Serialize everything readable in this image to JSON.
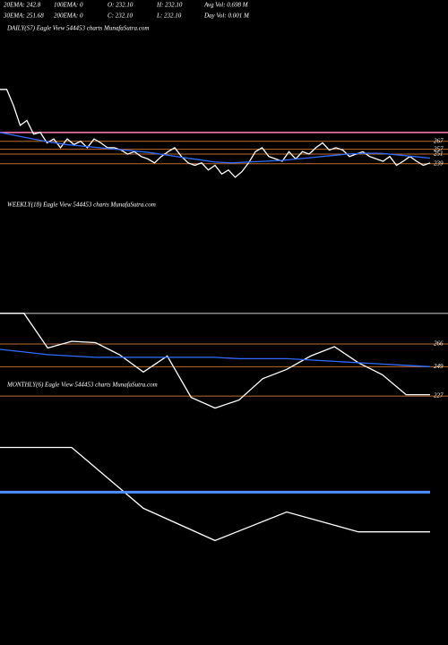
{
  "header": {
    "row1": [
      "20EMA: 242.8",
      "100EMA: 0",
      "O: 232.10",
      "H: 232.10",
      "Avg Vol: 0.698  M"
    ],
    "row2": [
      "30EMA: 251.68",
      "200EMA: 0",
      "C: 232.10",
      "L: 232.10",
      "Day Vol: 0.001  M"
    ]
  },
  "chart_data": [
    {
      "type": "line",
      "title": "DAILY(S7) Eagle   View  544453 charts MunafaSutra.com",
      "ylim": [
        214,
        399
      ],
      "series": [
        {
          "color": "#ffffff",
          "values": [
            332,
            332,
            312,
            287,
            293,
            276,
            278,
            265,
            270,
            259,
            270,
            263,
            267,
            259,
            270,
            265,
            259,
            259,
            256,
            251,
            254,
            248,
            245,
            240,
            248,
            254,
            259,
            248,
            240,
            237,
            240,
            231,
            237,
            226,
            231,
            222,
            229,
            240,
            254,
            259,
            248,
            245,
            242,
            254,
            245,
            254,
            251,
            259,
            265,
            256,
            259,
            256,
            248,
            251,
            254,
            248,
            245,
            242,
            248,
            237,
            242,
            248,
            242,
            237,
            240
          ]
        },
        {
          "color": "#2f6bff",
          "values": [
            278,
            274,
            270,
            266,
            263,
            261,
            259,
            257,
            255,
            253,
            250,
            247,
            244,
            241,
            240,
            241,
            242,
            243,
            245,
            247,
            249,
            251,
            252,
            252,
            250,
            248,
            246
          ]
        }
      ],
      "levels": [
        {
          "value": 278,
          "color": "#ff7fb0"
        },
        {
          "value": 267,
          "label": "267",
          "color": "#c06a2a"
        },
        {
          "value": 257,
          "label": "257",
          "color": "#c06a2a"
        },
        {
          "value": 251,
          "label": "251",
          "color": "#c06a2a"
        },
        {
          "value": 239,
          "label": "239",
          "color": "#c06a2a"
        }
      ]
    },
    {
      "type": "line",
      "title": "WEEKLY(18) Eagle   View  544453 charts MunafaSutra.com",
      "ylim": [
        215,
        366
      ],
      "series": [
        {
          "color": "#ffffff",
          "values": [
            289,
            289,
            263,
            268,
            267,
            258,
            245,
            257,
            226,
            218,
            224,
            240,
            247,
            257,
            264,
            252,
            243,
            228,
            228
          ]
        },
        {
          "color": "#2f6bff",
          "values": [
            262,
            260,
            258,
            257,
            256,
            256,
            256,
            256,
            256,
            256,
            255,
            255,
            255,
            254,
            253,
            252,
            251,
            250,
            249
          ]
        }
      ],
      "levels": [
        {
          "value": 289,
          "color": "#888888"
        },
        {
          "value": 266,
          "label": "266",
          "color": "#c06a2a"
        },
        {
          "value": 249,
          "label": "249",
          "color": "#c06a2a"
        },
        {
          "value": 227,
          "label": "227",
          "color": "#c06a2a"
        }
      ]
    },
    {
      "type": "line",
      "title": "MONTHLY(6) Eagle   View  544453 charts MunafaSutra.com",
      "ylim": [
        200,
        330
      ],
      "series": [
        {
          "color": "#ffffff",
          "values": [
            287,
            287,
            238,
            212,
            235,
            219,
            219
          ]
        },
        {
          "color": "#4f8fff",
          "values": [
            251,
            251
          ]
        }
      ],
      "levels": []
    }
  ]
}
